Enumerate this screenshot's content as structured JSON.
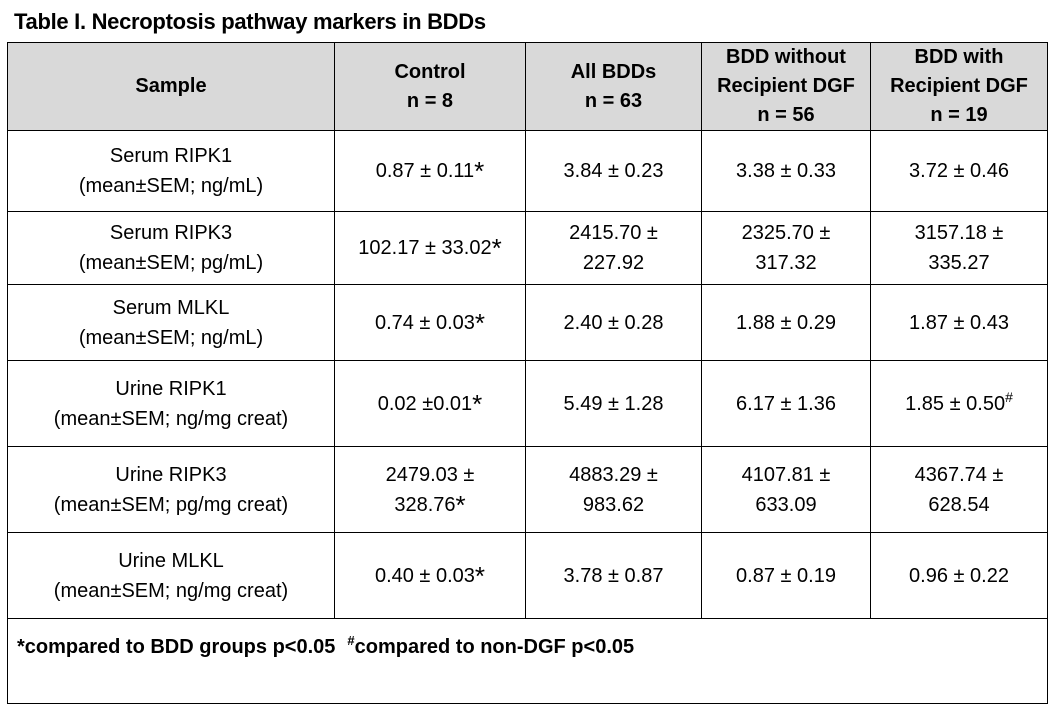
{
  "title": "Table I. Necroptosis pathway markers in BDDs",
  "headers": [
    {
      "lines": [
        "Sample"
      ]
    },
    {
      "lines": [
        "Control",
        "n = 8"
      ]
    },
    {
      "lines": [
        "All BDDs",
        "n = 63"
      ]
    },
    {
      "lines": [
        "BDD without",
        "Recipient DGF",
        "n = 56"
      ]
    },
    {
      "lines": [
        "BDD with",
        "Recipient DGF",
        "n = 19"
      ]
    }
  ],
  "rows": [
    {
      "sample": [
        "Serum RIPK1",
        "(mean±SEM; ng/mL)"
      ],
      "control": [
        "0.87 ± 0.11"
      ],
      "control_mark": "*",
      "all": [
        "3.84 ± 0.23"
      ],
      "without": [
        "3.38 ± 0.33"
      ],
      "with": [
        "3.72 ± 0.46"
      ],
      "with_mark": ""
    },
    {
      "sample": [
        "Serum RIPK3",
        "(mean±SEM; pg/mL)"
      ],
      "control": [
        "102.17 ± 33.02"
      ],
      "control_mark": "*",
      "all": [
        "2415.70 ±",
        "227.92"
      ],
      "without": [
        "2325.70 ±",
        "317.32"
      ],
      "with": [
        "3157.18 ±",
        "335.27"
      ],
      "with_mark": ""
    },
    {
      "sample": [
        "Serum MLKL",
        "(mean±SEM; ng/mL)"
      ],
      "control": [
        "0.74 ± 0.03"
      ],
      "control_mark": "*",
      "all": [
        "2.40 ± 0.28"
      ],
      "without": [
        "1.88 ± 0.29"
      ],
      "with": [
        "1.87 ± 0.43"
      ],
      "with_mark": ""
    },
    {
      "sample": [
        "Urine RIPK1",
        "(mean±SEM; ng/mg creat)"
      ],
      "control": [
        "0.02 ±0.01"
      ],
      "control_mark": "*",
      "all": [
        "5.49 ± 1.28"
      ],
      "without": [
        "6.17 ± 1.36"
      ],
      "with": [
        "1.85 ± 0.50"
      ],
      "with_mark": "#"
    },
    {
      "sample": [
        "Urine RIPK3",
        "(mean±SEM; pg/mg creat)"
      ],
      "control": [
        "2479.03 ±",
        "328.76"
      ],
      "control_mark": "*",
      "all": [
        "4883.29 ±",
        "983.62"
      ],
      "without": [
        "4107.81 ±",
        "633.09"
      ],
      "with": [
        "4367.74 ±",
        "628.54"
      ],
      "with_mark": ""
    },
    {
      "sample": [
        "Urine MLKL",
        "(mean±SEM; ng/mg creat)"
      ],
      "control": [
        "0.40 ± 0.03"
      ],
      "control_mark": "*",
      "all": [
        "3.78 ± 0.87"
      ],
      "without": [
        "0.87 ± 0.19"
      ],
      "with": [
        "0.96 ± 0.22"
      ],
      "with_mark": ""
    }
  ],
  "footer": {
    "star_note": "*compared to BDD groups p<0.05",
    "hash_mark": "#",
    "hash_note": "compared to non-DGF p<0.05"
  }
}
